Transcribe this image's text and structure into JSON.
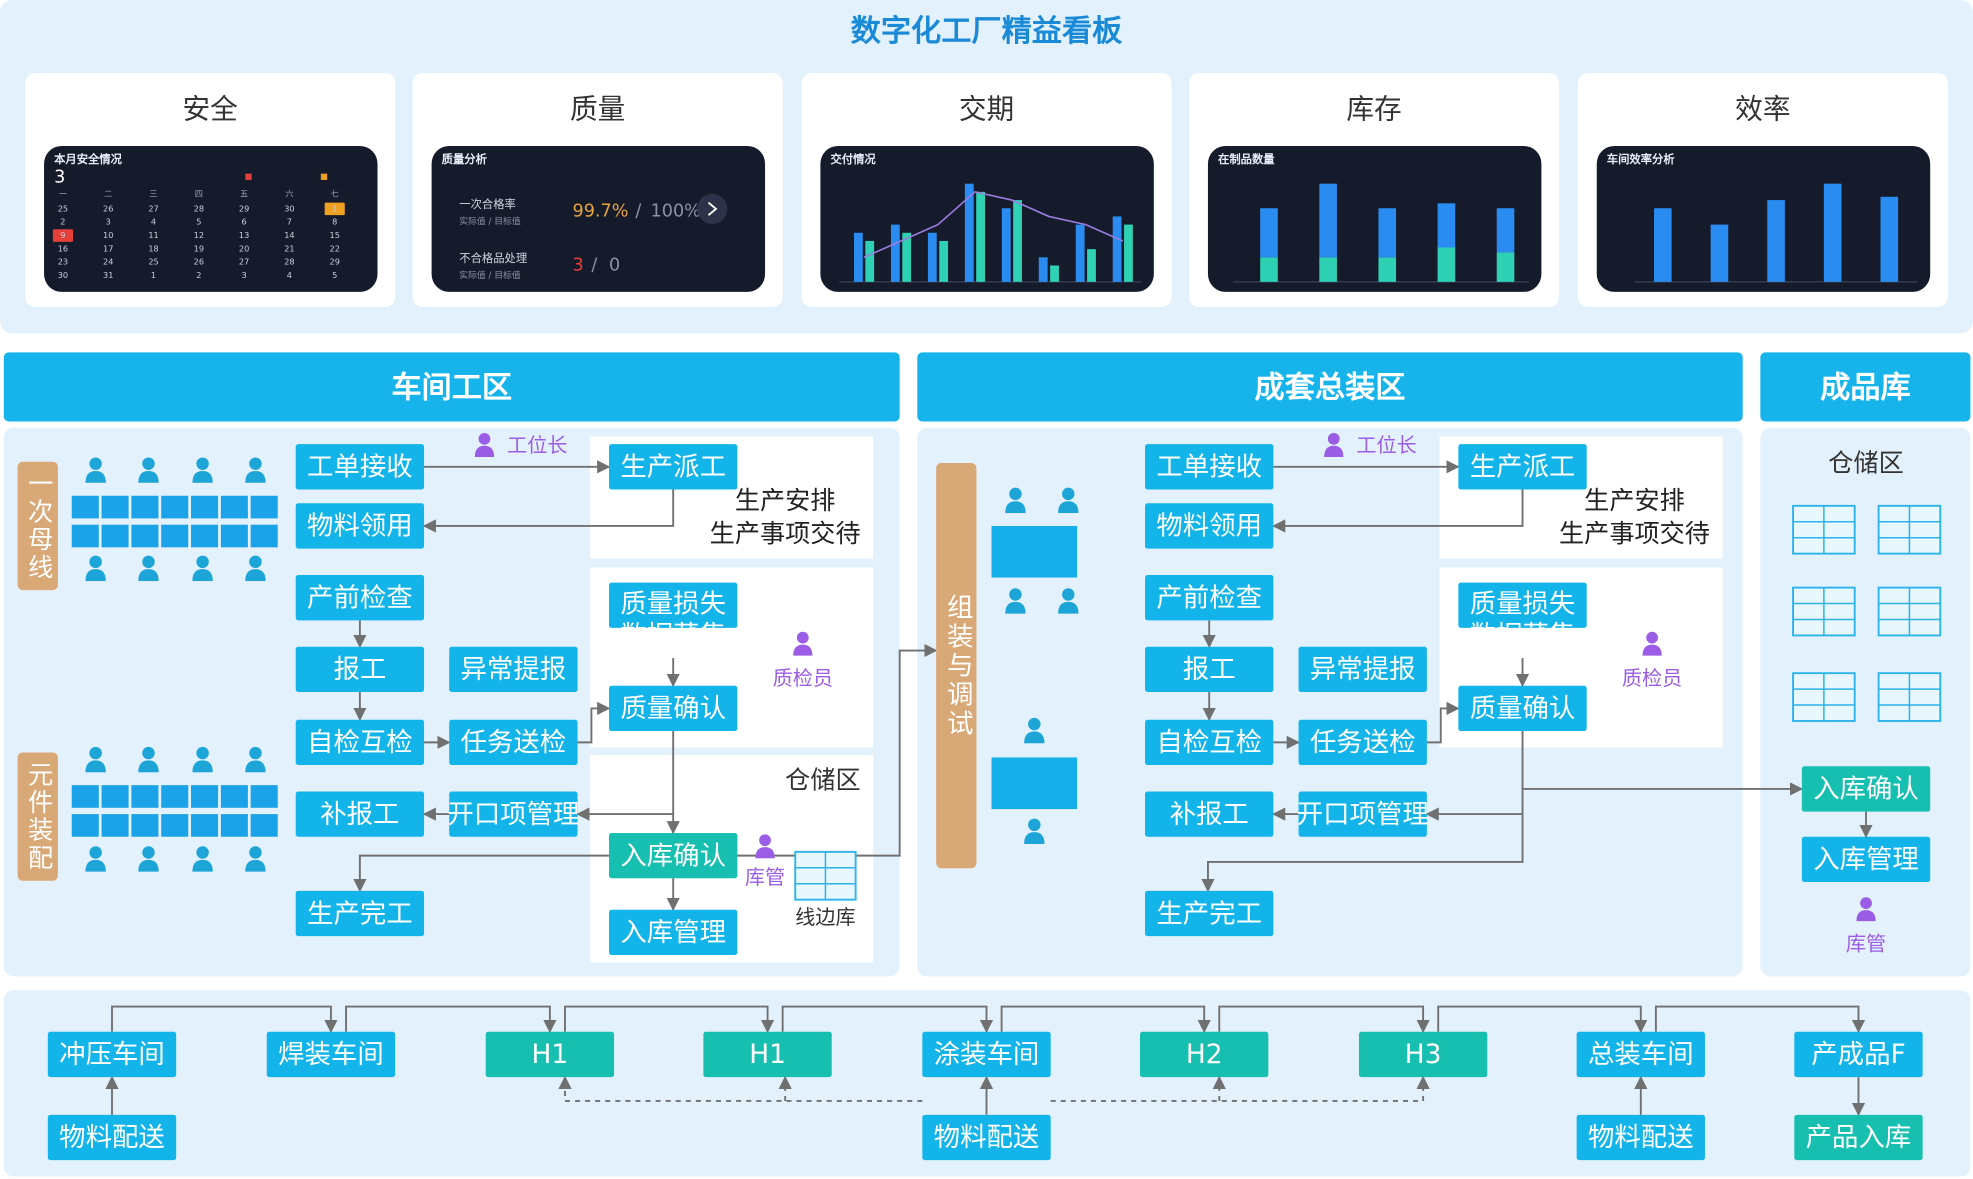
{
  "header": {
    "title": "数字化工厂精益看板"
  },
  "cards": [
    "安全",
    "质量",
    "交期",
    "库存",
    "效率"
  ],
  "dashboards": {
    "safety": {
      "title": "本月安全情况",
      "count": "3",
      "weekdays": [
        "一",
        "二",
        "三",
        "四",
        "五",
        "六",
        "七"
      ],
      "days": [
        25,
        26,
        27,
        28,
        29,
        30,
        1,
        2,
        3,
        4,
        5,
        6,
        7,
        8,
        9,
        10,
        11,
        12,
        13,
        14,
        15,
        16,
        17,
        18,
        19,
        20,
        21,
        22,
        23,
        24,
        25,
        26,
        27,
        28,
        29,
        30,
        31,
        1,
        2,
        3,
        4,
        5
      ]
    },
    "quality": {
      "title": "质量分析",
      "rate_label": "一次合格率",
      "sub": "实际值 / 目标值",
      "rate_actual": "99.7%",
      "sep": "/",
      "rate_target": "100%",
      "defect_label": "不合格品处理",
      "defect_actual": "3",
      "defect_target": "0"
    },
    "delivery": {
      "title": "交付情况",
      "bars": [
        [
          30,
          35,
          30,
          60,
          45,
          15,
          35,
          40
        ],
        [
          25,
          30,
          25,
          55,
          50,
          10,
          20,
          35
        ]
      ],
      "line": [
        15,
        25,
        35,
        55,
        50,
        40,
        35,
        25
      ]
    },
    "inventory": {
      "title": "在制品数量",
      "bottom": [
        25,
        25,
        25,
        35,
        30
      ],
      "top": [
        50,
        75,
        50,
        45,
        45
      ]
    },
    "efficiency": {
      "title": "车间效率分析",
      "values": [
        45,
        35,
        50,
        60,
        52
      ]
    }
  },
  "sections": {
    "workshop": {
      "title": "车间工区",
      "side_labels": [
        "一次母线",
        "元件装配"
      ],
      "boxes": [
        "工单接收",
        "物料领用",
        "产前检查",
        "报工",
        "异常提报",
        "自检互检",
        "任务送检",
        "补报工",
        "开口项管理",
        "生产完工",
        "生产派工",
        [
          "质量损失",
          "数据菜集"
        ],
        "质量确认",
        "入库确认",
        "入库管理"
      ],
      "foreman": "工位长",
      "notes": [
        "生产安排",
        "生产事项交待"
      ],
      "inspector": "质检员",
      "keeper": "库管",
      "storage": "仓储区",
      "line_store": "线边库"
    },
    "assembly": {
      "title": "成套总装区",
      "debug_label": "组装与调试",
      "boxes": [
        "工单接收",
        "物料领用",
        "产前检查",
        "报工",
        "异常提报",
        "自检互检",
        "任务送检",
        "补报工",
        "开口项管理",
        "生产完工",
        "生产派工",
        [
          "质量损失",
          "数据菜集"
        ],
        "质量确认"
      ],
      "foreman": "工位长",
      "notes": [
        "生产安排",
        "生产事项交待"
      ],
      "inspector": "质检员"
    },
    "finished": {
      "title": "成品库",
      "storage": "仓储区",
      "boxes": [
        "入库确认",
        "入库管理"
      ],
      "keeper": "库管"
    }
  },
  "line": {
    "stations": [
      "冲压车间",
      "焊装车间",
      "H1",
      "H1",
      "涂装车间",
      "H2",
      "H3",
      "总装车间",
      "产成品F"
    ],
    "feeds": [
      "物料配送",
      "物料配送",
      "物料配送",
      "产品入库"
    ]
  }
}
